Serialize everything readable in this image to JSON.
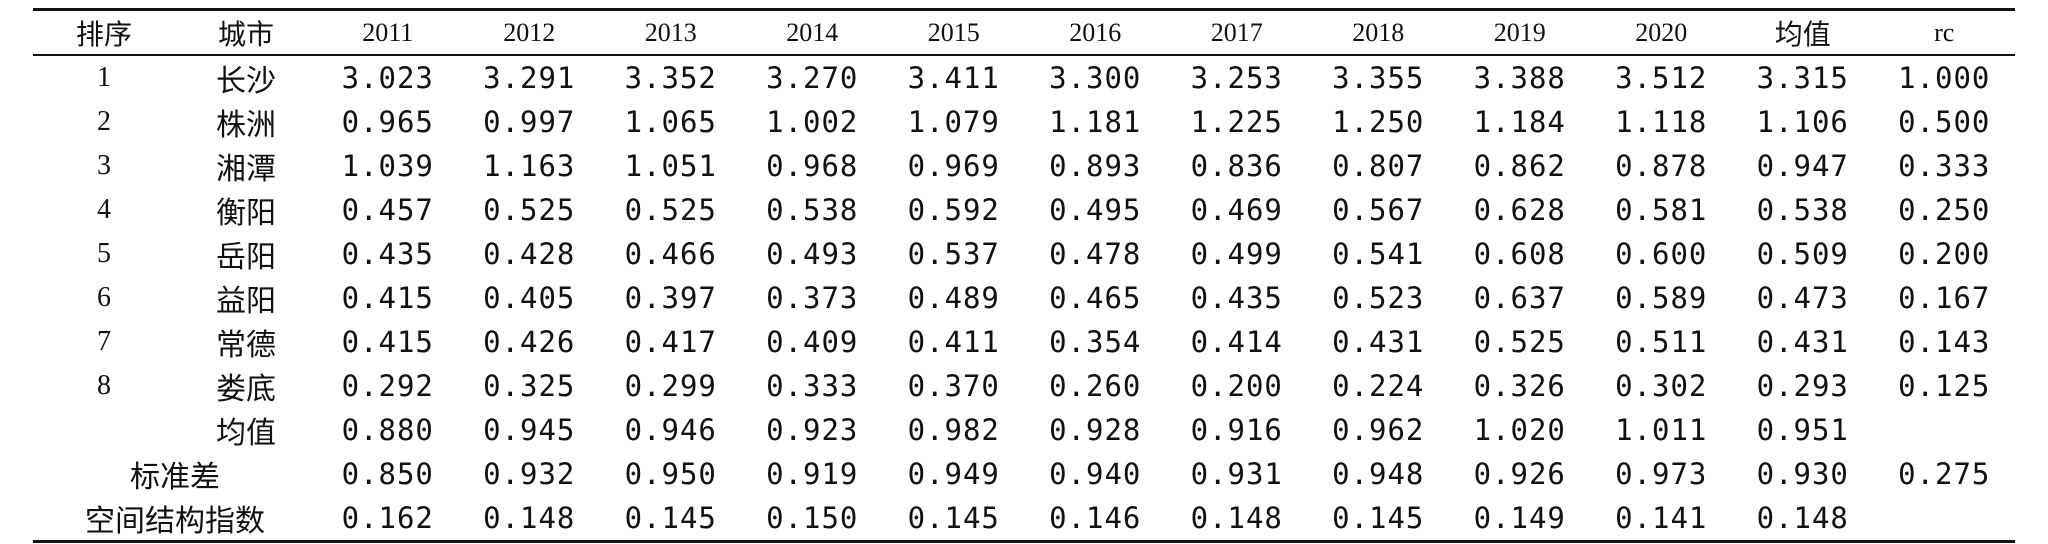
{
  "table": {
    "headers": {
      "rank": "排序",
      "city": "城市",
      "years": [
        "2011",
        "2012",
        "2013",
        "2014",
        "2015",
        "2016",
        "2017",
        "2018",
        "2019",
        "2020"
      ],
      "mean": "均值",
      "rc": "rc"
    },
    "rows": [
      {
        "rank": "1",
        "city": "长沙",
        "values": [
          "3.023",
          "3.291",
          "3.352",
          "3.270",
          "3.411",
          "3.300",
          "3.253",
          "3.355",
          "3.388",
          "3.512"
        ],
        "mean": "3.315",
        "rc": "1.000"
      },
      {
        "rank": "2",
        "city": "株洲",
        "values": [
          "0.965",
          "0.997",
          "1.065",
          "1.002",
          "1.079",
          "1.181",
          "1.225",
          "1.250",
          "1.184",
          "1.118"
        ],
        "mean": "1.106",
        "rc": "0.500"
      },
      {
        "rank": "3",
        "city": "湘潭",
        "values": [
          "1.039",
          "1.163",
          "1.051",
          "0.968",
          "0.969",
          "0.893",
          "0.836",
          "0.807",
          "0.862",
          "0.878"
        ],
        "mean": "0.947",
        "rc": "0.333"
      },
      {
        "rank": "4",
        "city": "衡阳",
        "values": [
          "0.457",
          "0.525",
          "0.525",
          "0.538",
          "0.592",
          "0.495",
          "0.469",
          "0.567",
          "0.628",
          "0.581"
        ],
        "mean": "0.538",
        "rc": "0.250"
      },
      {
        "rank": "5",
        "city": "岳阳",
        "values": [
          "0.435",
          "0.428",
          "0.466",
          "0.493",
          "0.537",
          "0.478",
          "0.499",
          "0.541",
          "0.608",
          "0.600"
        ],
        "mean": "0.509",
        "rc": "0.200"
      },
      {
        "rank": "6",
        "city": "益阳",
        "values": [
          "0.415",
          "0.405",
          "0.397",
          "0.373",
          "0.489",
          "0.465",
          "0.435",
          "0.523",
          "0.637",
          "0.589"
        ],
        "mean": "0.473",
        "rc": "0.167"
      },
      {
        "rank": "7",
        "city": "常德",
        "values": [
          "0.415",
          "0.426",
          "0.417",
          "0.409",
          "0.411",
          "0.354",
          "0.414",
          "0.431",
          "0.525",
          "0.511"
        ],
        "mean": "0.431",
        "rc": "0.143"
      },
      {
        "rank": "8",
        "city": "娄底",
        "values": [
          "0.292",
          "0.325",
          "0.299",
          "0.333",
          "0.370",
          "0.260",
          "0.200",
          "0.224",
          "0.326",
          "0.302"
        ],
        "mean": "0.293",
        "rc": "0.125"
      }
    ],
    "summary_rows": [
      {
        "label": "均值",
        "values": [
          "0.880",
          "0.945",
          "0.946",
          "0.923",
          "0.982",
          "0.928",
          "0.916",
          "0.962",
          "1.020",
          "1.011"
        ],
        "mean": "0.951",
        "rc": ""
      },
      {
        "label": "标准差",
        "values": [
          "0.850",
          "0.932",
          "0.950",
          "0.919",
          "0.949",
          "0.940",
          "0.931",
          "0.948",
          "0.926",
          "0.973"
        ],
        "mean": "0.930",
        "rc": "0.275"
      },
      {
        "label": "空间结构指数",
        "values": [
          "0.162",
          "0.148",
          "0.145",
          "0.150",
          "0.145",
          "0.146",
          "0.148",
          "0.145",
          "0.149",
          "0.141"
        ],
        "mean": "0.148",
        "rc": ""
      }
    ]
  }
}
